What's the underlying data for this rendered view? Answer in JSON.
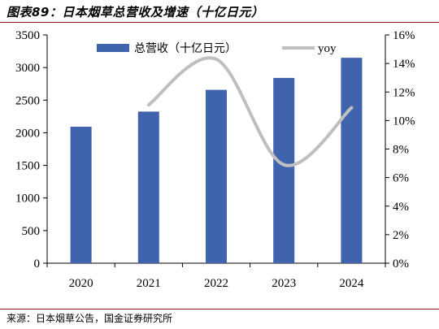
{
  "header": {
    "title": "图表89：日本烟草总营收及增速（十亿日元）"
  },
  "footer": {
    "source": "来源：日本烟草公告，国金证券研究所"
  },
  "colors": {
    "bar": "#4063ae",
    "line": "#bfbfbf",
    "rule": "#8a1c24"
  },
  "chart_data": {
    "type": "bar",
    "categories": [
      "2020",
      "2021",
      "2022",
      "2023",
      "2024"
    ],
    "series": [
      {
        "name": "总营收（十亿日元）",
        "type": "bar",
        "axis": "left",
        "values": [
          2092.6,
          2324.8,
          2657.8,
          2841.1,
          3149.8
        ]
      },
      {
        "name": "yoy",
        "type": "line",
        "axis": "right",
        "values": [
          null,
          11.1,
          14.3,
          6.9,
          10.9
        ]
      }
    ],
    "y_left": {
      "min": 0,
      "max": 3500,
      "ticks": [
        0,
        500,
        1000,
        1500,
        2000,
        2500,
        3000,
        3500
      ]
    },
    "y_right": {
      "min": 0,
      "max": 16,
      "ticks": [
        "0%",
        "2%",
        "4%",
        "6%",
        "8%",
        "10%",
        "12%",
        "14%",
        "16%"
      ]
    },
    "legend": {
      "placement": "top",
      "items": [
        "总营收（十亿日元）",
        "yoy"
      ]
    },
    "grid": false
  }
}
